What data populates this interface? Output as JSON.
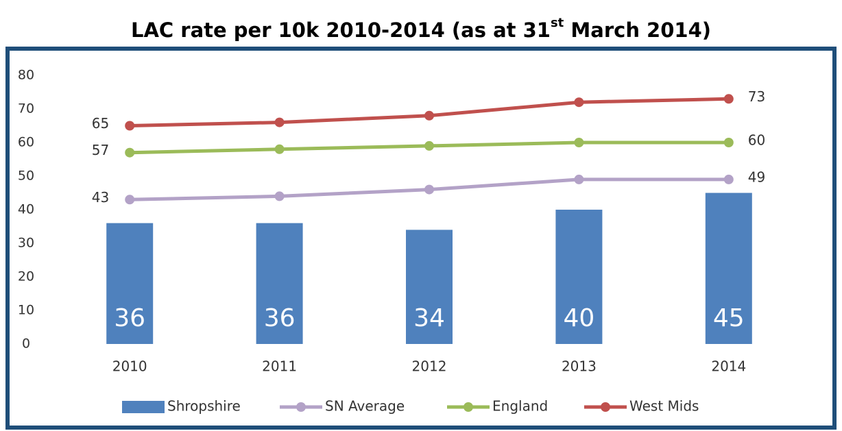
{
  "chart_data": {
    "type": "bar-line",
    "title_parts": [
      "LAC rate per 10k 2010-2014 (as at 31",
      "st",
      " March 2014)"
    ],
    "categories": [
      "2010",
      "2011",
      "2012",
      "2013",
      "2014"
    ],
    "ylim": [
      0,
      80
    ],
    "yticks": [
      0,
      10,
      20,
      30,
      40,
      50,
      60,
      70,
      80
    ],
    "grid": false,
    "legend": "bottom",
    "series": [
      {
        "name": "Shropshire",
        "type": "bar",
        "color": "#4f81bd",
        "values": [
          36,
          36,
          34,
          40,
          45
        ],
        "data_labels": "inside-bottom"
      },
      {
        "name": "SN Average",
        "type": "line",
        "color": "#b3a2c7",
        "values": [
          43,
          44,
          46,
          49,
          49
        ],
        "data_labels": "ends"
      },
      {
        "name": "England",
        "type": "line",
        "color": "#9bbb59",
        "values": [
          57,
          58,
          59,
          60,
          60
        ],
        "data_labels": "ends"
      },
      {
        "name": "West Mids",
        "type": "line",
        "color": "#c0504d",
        "values": [
          65,
          66,
          68,
          72,
          73
        ],
        "data_labels": "ends"
      }
    ]
  }
}
